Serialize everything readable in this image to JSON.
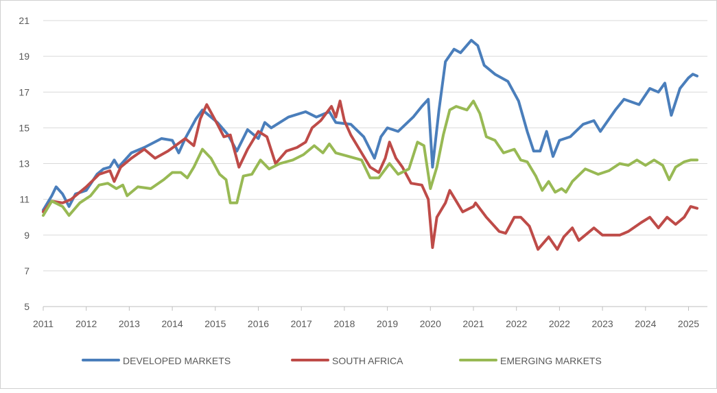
{
  "chart_data": {
    "type": "line",
    "title": "",
    "xlabel": "",
    "ylabel": "",
    "ylim": [
      5,
      21
    ],
    "yticks": [
      5,
      7,
      9,
      11,
      13,
      15,
      17,
      19,
      21
    ],
    "x_tick_labels": [
      "2011",
      "2012",
      "2013",
      "2014",
      "2015",
      "2016",
      "2017",
      "2018",
      "2019",
      "2020",
      "2021",
      "2022",
      "2022",
      "2023",
      "2024",
      "2025"
    ],
    "grid": true,
    "legend_position": "bottom",
    "series": [
      {
        "name": "DEVELOPED MARKETS",
        "color": "#4a7ebb",
        "x": [
          0,
          0.2,
          0.3,
          0.45,
          0.6,
          0.75,
          1,
          1.25,
          1.4,
          1.55,
          1.65,
          1.75,
          2.05,
          2.35,
          2.75,
          3.0,
          3.15,
          3.3,
          3.55,
          3.7,
          3.9,
          4.05,
          4.3,
          4.5,
          4.75,
          5.0,
          5.15,
          5.3,
          5.7,
          6.1,
          6.35,
          6.65,
          6.8,
          7.15,
          7.45,
          7.7,
          7.85,
          8.0,
          8.25,
          8.6,
          8.8,
          8.95,
          9.05,
          9.2,
          9.35,
          9.55,
          9.7,
          9.95,
          10.1,
          10.25,
          10.5,
          10.8,
          11.05,
          11.25,
          11.4,
          11.55,
          11.7,
          11.85,
          12.0,
          12.25,
          12.55,
          12.8,
          12.95,
          13.3,
          13.5,
          13.85,
          14.1,
          14.3,
          14.45,
          14.6,
          14.8,
          15.0,
          15.1,
          15.2
        ],
        "y": [
          10.4,
          11.2,
          11.7,
          11.3,
          10.6,
          11.3,
          11.5,
          12.4,
          12.7,
          12.8,
          13.2,
          12.8,
          13.6,
          13.9,
          14.4,
          14.3,
          13.6,
          14.4,
          15.5,
          16.0,
          15.6,
          15.3,
          14.6,
          13.7,
          14.9,
          14.4,
          15.3,
          15.0,
          15.6,
          15.9,
          15.6,
          15.9,
          15.3,
          15.2,
          14.5,
          13.3,
          14.5,
          15.0,
          14.8,
          15.6,
          16.2,
          16.6,
          12.8,
          16.0,
          18.7,
          19.4,
          19.2,
          19.9,
          19.6,
          18.5,
          18.0,
          17.6,
          16.5,
          14.8,
          13.7,
          13.7,
          14.8,
          13.4,
          14.3,
          14.5,
          15.2,
          15.4,
          14.8,
          16.0,
          16.6,
          16.3,
          17.2,
          17.0,
          17.5,
          15.7,
          17.2,
          17.8,
          18.0,
          17.9
        ]
      },
      {
        "name": "SOUTH AFRICA",
        "color": "#be4b48",
        "x": [
          0,
          0.2,
          0.45,
          0.65,
          1.0,
          1.3,
          1.55,
          1.65,
          1.8,
          2.05,
          2.35,
          2.6,
          2.9,
          3.3,
          3.5,
          3.65,
          3.8,
          4.05,
          4.2,
          4.35,
          4.55,
          4.75,
          5.0,
          5.2,
          5.4,
          5.65,
          5.9,
          6.1,
          6.25,
          6.45,
          6.7,
          6.8,
          6.9,
          7.0,
          7.15,
          7.35,
          7.6,
          7.8,
          7.95,
          8.05,
          8.2,
          8.35,
          8.55,
          8.8,
          8.95,
          9.05,
          9.15,
          9.35,
          9.45,
          9.6,
          9.75,
          10.0,
          10.05,
          10.3,
          10.6,
          10.75,
          10.95,
          11.1,
          11.3,
          11.5,
          11.75,
          11.95,
          12.1,
          12.3,
          12.45,
          12.6,
          12.8,
          13.0,
          13.4,
          13.6,
          13.9,
          14.1,
          14.3,
          14.5,
          14.7,
          14.9,
          15.05,
          15.2
        ],
        "y": [
          10.3,
          10.9,
          10.8,
          11.0,
          11.7,
          12.4,
          12.6,
          12.0,
          12.8,
          13.3,
          13.8,
          13.3,
          13.7,
          14.4,
          14.0,
          15.5,
          16.3,
          15.2,
          14.5,
          14.6,
          12.8,
          13.8,
          14.8,
          14.5,
          13.0,
          13.7,
          13.9,
          14.2,
          15.0,
          15.4,
          16.2,
          15.6,
          16.5,
          15.4,
          14.6,
          13.8,
          12.8,
          12.5,
          13.3,
          14.2,
          13.3,
          12.8,
          11.9,
          11.8,
          11.0,
          8.3,
          10.0,
          10.8,
          11.5,
          10.9,
          10.3,
          10.6,
          10.8,
          10.0,
          9.2,
          9.1,
          10.0,
          10.0,
          9.5,
          8.2,
          8.9,
          8.2,
          8.9,
          9.4,
          8.7,
          9.0,
          9.4,
          9.0,
          9.0,
          9.2,
          9.7,
          10.0,
          9.4,
          10.0,
          9.6,
          10.0,
          10.6,
          10.5
        ]
      },
      {
        "name": "EMERGING MARKETS",
        "color": "#98b954",
        "x": [
          0,
          0.2,
          0.45,
          0.6,
          0.85,
          1.1,
          1.3,
          1.5,
          1.7,
          1.85,
          1.95,
          2.2,
          2.5,
          2.8,
          3.0,
          3.2,
          3.35,
          3.5,
          3.7,
          3.9,
          4.1,
          4.25,
          4.35,
          4.5,
          4.65,
          4.85,
          5.05,
          5.25,
          5.5,
          5.8,
          6.05,
          6.3,
          6.5,
          6.65,
          6.8,
          7.1,
          7.4,
          7.6,
          7.8,
          8.05,
          8.25,
          8.5,
          8.7,
          8.85,
          9.0,
          9.15,
          9.3,
          9.45,
          9.6,
          9.85,
          10.0,
          10.15,
          10.3,
          10.5,
          10.7,
          10.95,
          11.1,
          11.25,
          11.45,
          11.6,
          11.75,
          11.9,
          12.05,
          12.15,
          12.3,
          12.6,
          12.9,
          13.15,
          13.4,
          13.6,
          13.8,
          14.0,
          14.2,
          14.4,
          14.55,
          14.7,
          14.9,
          15.05,
          15.2
        ],
        "y": [
          10.1,
          10.9,
          10.6,
          10.1,
          10.8,
          11.2,
          11.8,
          11.9,
          11.6,
          11.8,
          11.2,
          11.7,
          11.6,
          12.1,
          12.5,
          12.5,
          12.2,
          12.8,
          13.8,
          13.3,
          12.4,
          12.1,
          10.8,
          10.8,
          12.3,
          12.4,
          13.2,
          12.7,
          13.0,
          13.2,
          13.5,
          14.0,
          13.6,
          14.1,
          13.6,
          13.4,
          13.2,
          12.2,
          12.2,
          13.0,
          12.4,
          12.7,
          14.2,
          14.0,
          11.6,
          12.8,
          14.6,
          16.0,
          16.2,
          16.0,
          16.5,
          15.8,
          14.5,
          14.3,
          13.6,
          13.8,
          13.2,
          13.1,
          12.3,
          11.5,
          12.0,
          11.4,
          11.6,
          11.4,
          12.0,
          12.7,
          12.4,
          12.6,
          13.0,
          12.9,
          13.2,
          12.9,
          13.2,
          12.9,
          12.1,
          12.8,
          13.1,
          13.2,
          13.2
        ]
      }
    ]
  }
}
